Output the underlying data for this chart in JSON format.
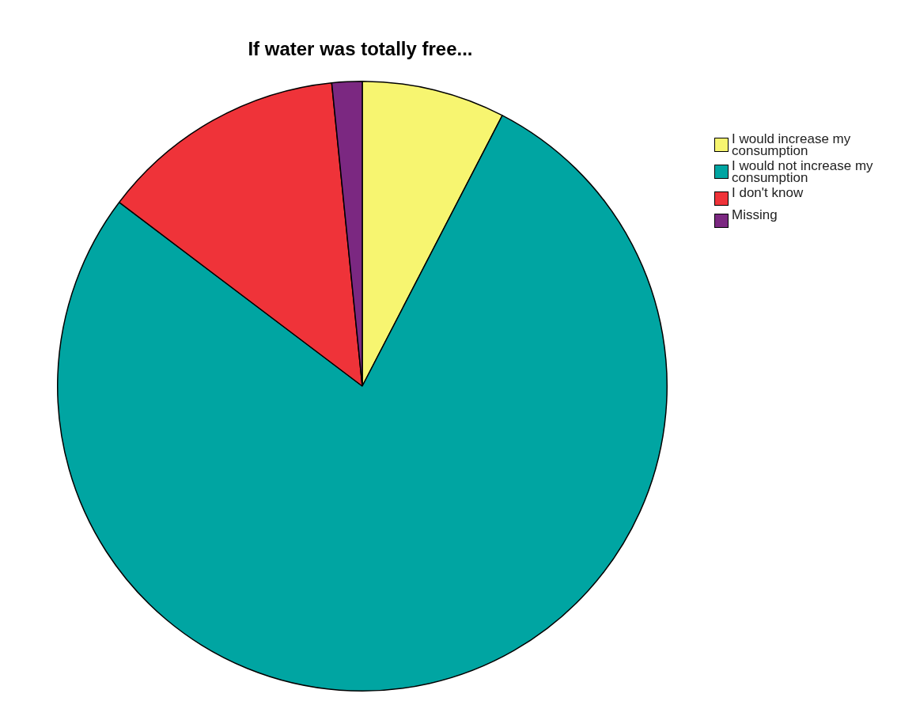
{
  "chart_data": {
    "type": "pie",
    "title": "If water was totally free...",
    "categories": [
      "I would increase my consumption",
      "I would not increase my consumption",
      "I don't know",
      "Missing"
    ],
    "values": [
      7.6,
      77.7,
      13.1,
      1.6
    ],
    "colors": [
      "#f7f570",
      "#00a5a2",
      "#ef3339",
      "#7b2881"
    ],
    "legend": "top right"
  }
}
